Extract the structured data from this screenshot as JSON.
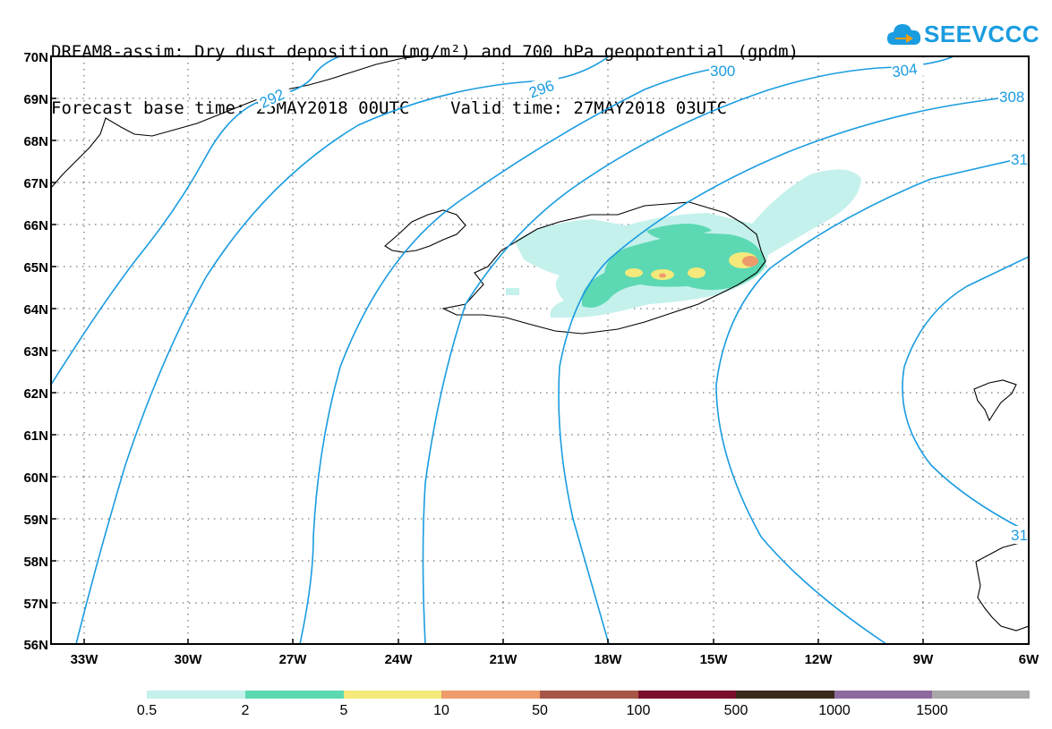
{
  "header": {
    "line1": "DREAM8-assim: Dry dust deposition (mg/m²) and 700 hPa geopotential (gpdm)",
    "line2": "Forecast base time: 25MAY2018 00UTC    Valid time: 27MAY2018 03UTC"
  },
  "logo": {
    "text": "SEEVCCC",
    "icon": "cloud-arrow-icon",
    "color": "#1a9ce0"
  },
  "map": {
    "lat_labels": [
      "70N",
      "69N",
      "68N",
      "67N",
      "66N",
      "65N",
      "64N",
      "63N",
      "62N",
      "61N",
      "60N",
      "59N",
      "58N",
      "57N",
      "56N"
    ],
    "lon_labels": [
      "33W",
      "30W",
      "27W",
      "24W",
      "21W",
      "18W",
      "15W",
      "12W",
      "9W",
      "6W"
    ],
    "contour_labels": [
      "292",
      "296",
      "300",
      "304",
      "308",
      "31",
      "31"
    ],
    "contour_color": "#1a9ce0"
  },
  "legend": {
    "colors": [
      "#c4f1ec",
      "#5cd9b3",
      "#f4e97a",
      "#ef9a6b",
      "#a65647",
      "#7a0e2b",
      "#3a2a1a",
      "#8e6a9e",
      "#a8a8a8"
    ],
    "labels": [
      "0.5",
      "2",
      "5",
      "10",
      "50",
      "100",
      "500",
      "1000",
      "1500"
    ]
  }
}
